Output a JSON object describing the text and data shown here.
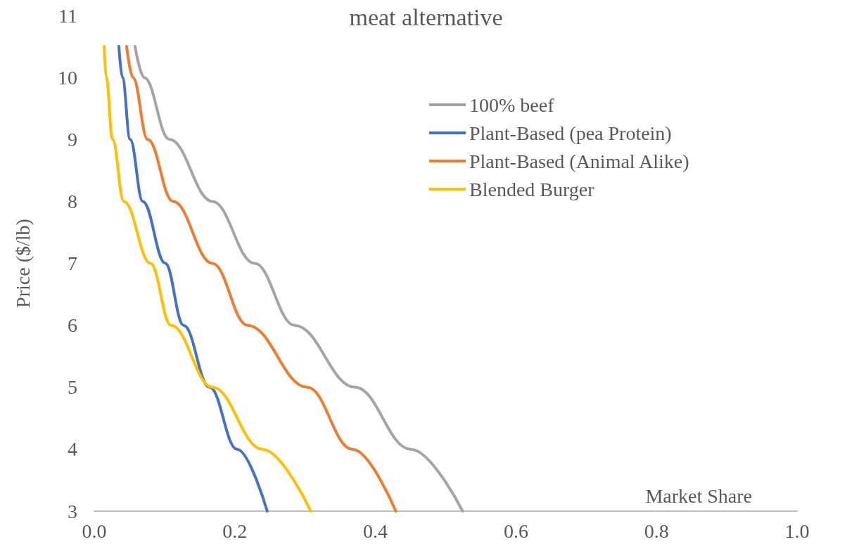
{
  "chart_data": {
    "type": "line",
    "title": "meat alternative",
    "xlabel": "Market Share",
    "ylabel": "Price ($/lb)",
    "series": [
      {
        "name": "100% beef",
        "color": "#a5a5a5",
        "x": [
          0.058,
          0.071,
          0.107,
          0.168,
          0.228,
          0.285,
          0.371,
          0.45,
          0.524
        ],
        "values": [
          10.5,
          10,
          9,
          8,
          7,
          6,
          5,
          4,
          3
        ]
      },
      {
        "name": "Plant-Based (pea Protein)",
        "color": "#4472c4",
        "x": [
          0.035,
          0.04,
          0.051,
          0.069,
          0.101,
          0.127,
          0.164,
          0.203,
          0.246
        ],
        "values": [
          10.5,
          10,
          9,
          8,
          7,
          6,
          5,
          4,
          3
        ]
      },
      {
        "name": "Plant-Based (Animal Alike)",
        "color": "#ed7d31",
        "x": [
          0.046,
          0.055,
          0.076,
          0.112,
          0.168,
          0.218,
          0.303,
          0.367,
          0.429
        ],
        "values": [
          10.5,
          10,
          9,
          8,
          7,
          6,
          5,
          4,
          3
        ]
      },
      {
        "name": "Blended Burger",
        "color": "#ffc000",
        "x": [
          0.014,
          0.017,
          0.026,
          0.042,
          0.08,
          0.109,
          0.168,
          0.239,
          0.308
        ],
        "values": [
          10.5,
          10,
          9,
          8,
          7,
          6,
          5,
          4,
          3
        ]
      }
    ],
    "xlim": [
      0,
      1
    ],
    "xticks": [
      {
        "value": 0,
        "label": "0.0"
      },
      0.2,
      0.4,
      0.6,
      0.8,
      {
        "value": 1,
        "label": "1.0"
      }
    ],
    "ylim": [
      3,
      11
    ],
    "yticks": [
      3,
      4,
      5,
      6,
      7,
      8,
      9,
      10,
      11
    ],
    "grid": false,
    "legend": "top right",
    "marker": "none",
    "line_style": "solid"
  }
}
